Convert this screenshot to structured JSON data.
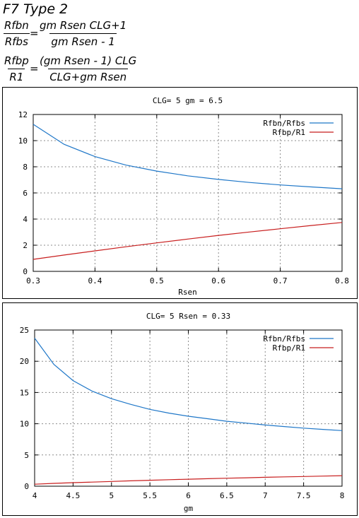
{
  "header": {
    "title": "F7 Type 2",
    "eq1": {
      "lhs_num": "Rfbn",
      "lhs_den": "Rfbs",
      "eq": "=",
      "rhs_num": "gm Rsen CLG+1",
      "rhs_den": "gm Rsen - 1"
    },
    "eq2": {
      "lhs_num": "Rfbp",
      "lhs_den": "R1",
      "eq": "=",
      "rhs_num": "(gm Rsen - 1) CLG",
      "rhs_den": "CLG+gm Rsen"
    }
  },
  "colors": {
    "series1": "#1f77c8",
    "series2": "#c81e1e",
    "grid": "#8c8c8c"
  },
  "chart_data": [
    {
      "type": "line",
      "title": "CLG= 5 gm = 6.5",
      "xlabel": "Rsen",
      "ylabel": "",
      "xlim": [
        0.3,
        0.8
      ],
      "ylim": [
        0,
        12
      ],
      "xticks": [
        "0.3",
        "0.4",
        "0.5",
        "0.6",
        "0.7",
        "0.8"
      ],
      "yticks": [
        "0",
        "2",
        "4",
        "6",
        "8",
        "10",
        "12"
      ],
      "grid": true,
      "legend": "top-right",
      "x": [
        0.3,
        0.35,
        0.4,
        0.45,
        0.5,
        0.55,
        0.6,
        0.65,
        0.7,
        0.75,
        0.8
      ],
      "series": [
        {
          "name": "Rfbn/Rfbs",
          "values": [
            11.25,
            9.72,
            8.78,
            8.13,
            7.67,
            7.31,
            7.03,
            6.8,
            6.61,
            6.46,
            6.32
          ]
        },
        {
          "name": "Rfbp/R1",
          "values": [
            0.92,
            1.25,
            1.57,
            1.88,
            2.18,
            2.47,
            2.75,
            3.01,
            3.26,
            3.51,
            3.74
          ]
        }
      ]
    },
    {
      "type": "line",
      "title": "CLG= 5 Rsen = 0.33",
      "xlabel": "gm",
      "ylabel": "",
      "xlim": [
        4,
        8
      ],
      "ylim": [
        0,
        25
      ],
      "xticks": [
        "4",
        "4.5",
        "5",
        "5.5",
        "6",
        "6.5",
        "7",
        "7.5",
        "8"
      ],
      "yticks": [
        "0",
        "5",
        "10",
        "15",
        "20",
        "25"
      ],
      "grid": true,
      "legend": "top-right",
      "x": [
        4,
        4.25,
        4.5,
        4.75,
        5,
        5.25,
        5.5,
        5.75,
        6,
        6.25,
        6.5,
        6.75,
        7,
        7.25,
        7.5,
        7.75,
        8
      ],
      "series": [
        {
          "name": "Rfbn/Rfbs",
          "values": [
            23.7,
            19.5,
            16.9,
            15.2,
            14.0,
            13.1,
            12.3,
            11.7,
            11.2,
            10.8,
            10.4,
            10.1,
            9.8,
            9.55,
            9.3,
            9.1,
            8.9
          ]
        },
        {
          "name": "Rfbp/R1",
          "values": [
            0.32,
            0.45,
            0.56,
            0.66,
            0.76,
            0.86,
            0.95,
            1.04,
            1.12,
            1.2,
            1.28,
            1.35,
            1.42,
            1.49,
            1.55,
            1.62,
            1.68
          ]
        }
      ]
    }
  ]
}
